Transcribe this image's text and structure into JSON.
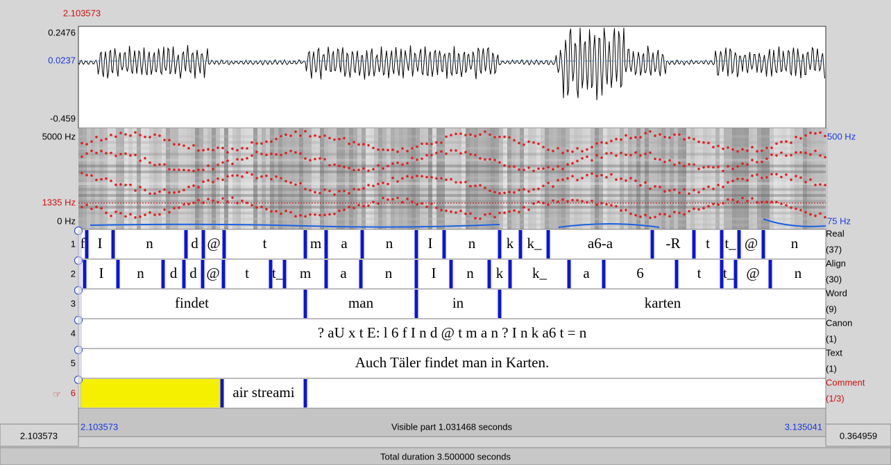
{
  "waveform": {
    "cursor_time": "2.103573",
    "max": "0.2476",
    "level": "0.0237",
    "min": "-0.459"
  },
  "spectrogram": {
    "max_freq": "5000 Hz",
    "cursor_freq": "1335 Hz",
    "min_freq": "0 Hz",
    "pitch_max": "500 Hz",
    "pitch_min": "75 Hz"
  },
  "tiers": [
    {
      "number": "1",
      "name": "Real",
      "count": "(37)",
      "intervals": [
        "f",
        "I",
        "n",
        "d",
        "@",
        "t",
        "m",
        "a",
        "n",
        "I",
        "n",
        "k",
        "k_",
        "a6-a",
        "-R",
        "t",
        "t_",
        "@",
        "n"
      ]
    },
    {
      "number": "2",
      "name": "Align",
      "count": "(30)",
      "intervals": [
        "I",
        "n",
        "d",
        "d",
        "@",
        "t",
        "t_",
        "m",
        "a",
        "n",
        "I",
        "n",
        "k",
        "k_",
        "a",
        "6",
        "t",
        "t_",
        "@",
        "n"
      ]
    },
    {
      "number": "3",
      "name": "Word",
      "count": "(9)",
      "intervals": [
        "findet",
        "man",
        "in",
        "karten"
      ]
    },
    {
      "number": "4",
      "name": "Canon",
      "count": "(1)",
      "intervals": [
        "? aU x  t E: l 6  f I n d @ t  m a n  ? I n  k a6 t = n"
      ]
    },
    {
      "number": "5",
      "name": "Text",
      "count": "(1)",
      "intervals": [
        "Auch Täler findet man in Karten."
      ]
    },
    {
      "number": "6",
      "marker": "☞",
      "name": "Comment",
      "count": "(1/3)",
      "intervals": [
        "air streami"
      ]
    }
  ],
  "footer": {
    "start": "2.103573",
    "visible": "Visible part 1.031468 seconds",
    "end": "3.135041",
    "left_total": "2.103573",
    "right_rest": "0.364959",
    "total": "Total duration 3.500000 seconds"
  }
}
